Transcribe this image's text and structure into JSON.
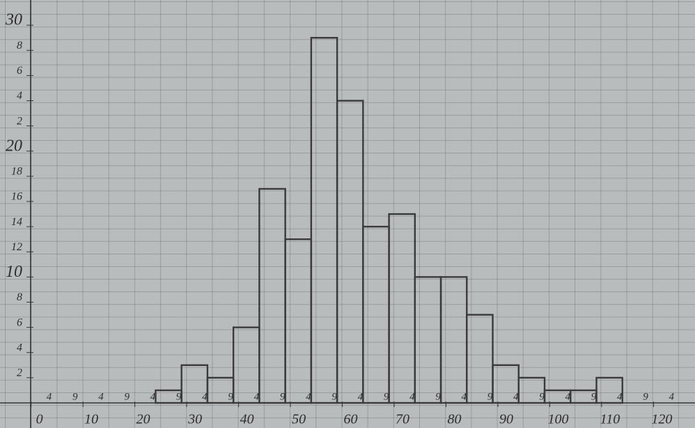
{
  "chart_data": {
    "type": "histogram",
    "bins": [
      24,
      29,
      34,
      39,
      44,
      49,
      54,
      59,
      64,
      69,
      74,
      79,
      84,
      89,
      94,
      99,
      104,
      109,
      114
    ],
    "values": [
      1,
      3,
      2,
      6,
      17,
      13,
      29,
      24,
      14,
      15,
      10,
      10,
      7,
      3,
      2,
      1,
      1,
      2
    ],
    "color": "#3a3a3a",
    "xlim": [
      -6,
      128
    ],
    "xticks": [
      0,
      10,
      20,
      30,
      40,
      50,
      60,
      70,
      80,
      90,
      100,
      110,
      120
    ],
    "bin_labels": [
      4,
      9,
      {
        "value": 14,
        "label": "4"
      },
      {
        "value": 19,
        "label": "9"
      },
      {
        "value": 24,
        "label": "4"
      },
      {
        "value": 29,
        "label": "9"
      },
      {
        "value": 34,
        "label": "4"
      },
      {
        "value": 39,
        "label": "9"
      },
      {
        "value": 44,
        "label": "4"
      },
      {
        "value": 49,
        "label": "9"
      },
      {
        "value": 54,
        "label": "4"
      },
      {
        "value": 59,
        "label": "9"
      },
      {
        "value": 64,
        "label": "4"
      },
      {
        "value": 69,
        "label": "9"
      },
      {
        "value": 74,
        "label": "4"
      },
      {
        "value": 79,
        "label": "9"
      },
      {
        "value": 84,
        "label": "4"
      },
      {
        "value": 89,
        "label": "9"
      },
      {
        "value": 94,
        "label": "4"
      },
      {
        "value": 99,
        "label": "9"
      },
      {
        "value": 104,
        "label": "4"
      },
      {
        "value": 109,
        "label": "9"
      },
      {
        "value": 114,
        "label": "4"
      },
      {
        "value": 119,
        "label": "9"
      },
      {
        "value": 124,
        "label": "4"
      }
    ],
    "ylim": [
      0,
      32
    ],
    "yticks": [
      2,
      4,
      6,
      8,
      10,
      12,
      14,
      16,
      18,
      20,
      {
        "value": 22,
        "label": "2"
      },
      {
        "value": 24,
        "label": "4"
      },
      {
        "value": 26,
        "label": "6"
      },
      {
        "value": 28,
        "label": "8"
      },
      30
    ]
  }
}
